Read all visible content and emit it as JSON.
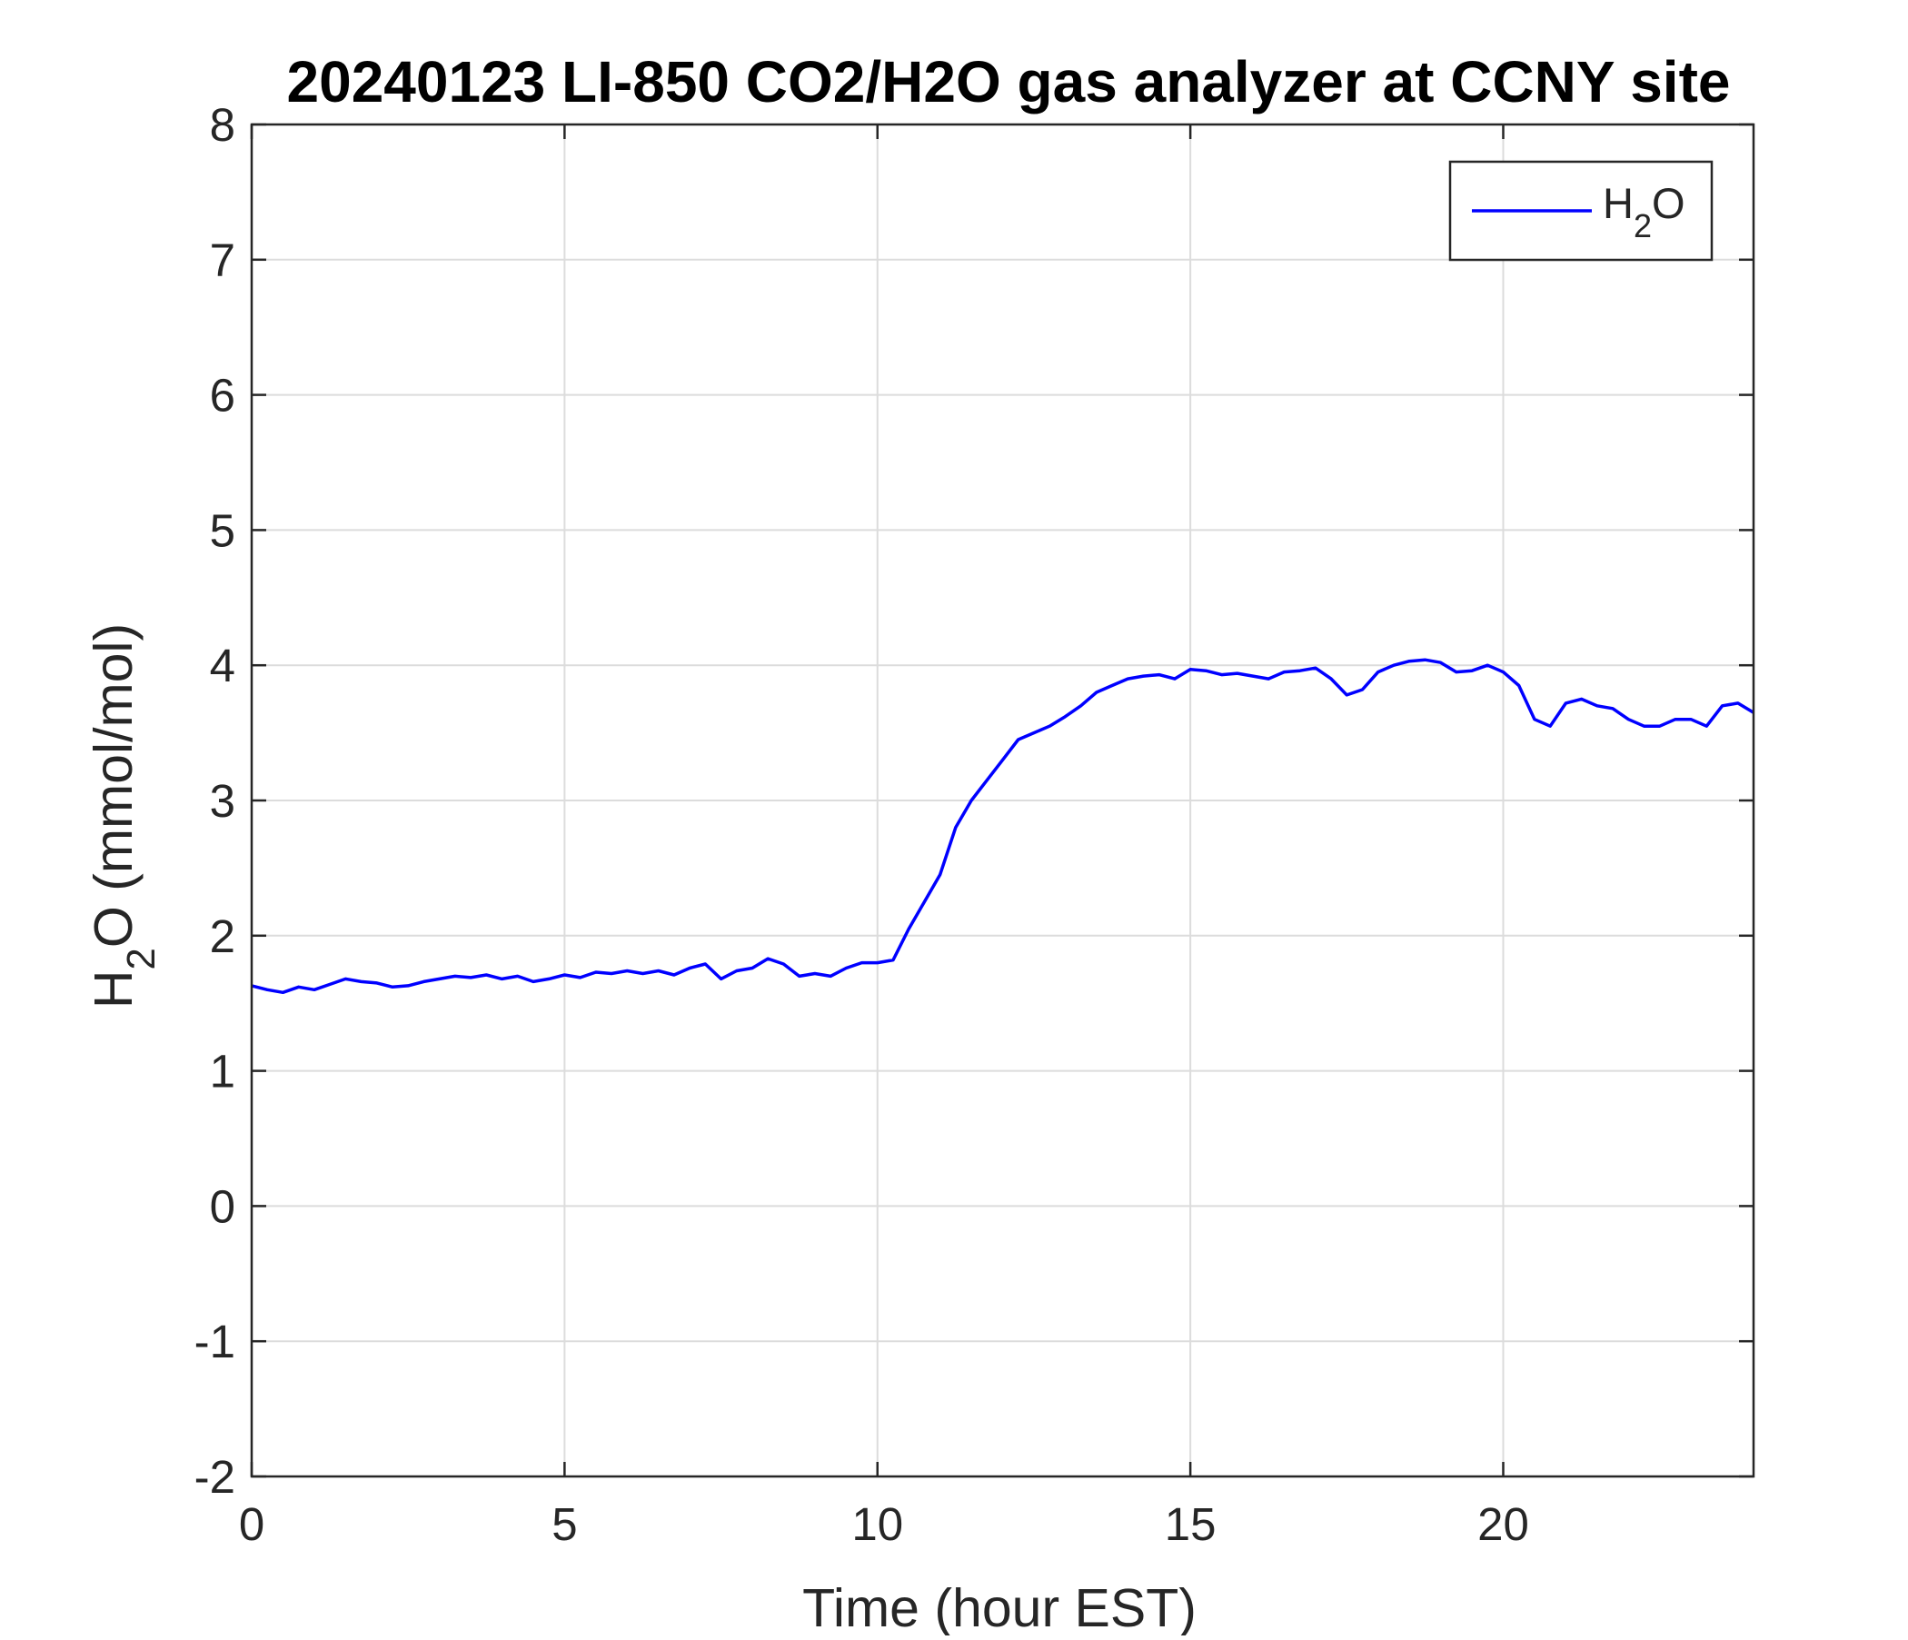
{
  "chart_data": {
    "type": "line",
    "title": "20240123 LI-850 CO2/H2O gas analyzer at CCNY site",
    "xlabel": "Time (hour EST)",
    "ylabel": {
      "base": "H",
      "sub": "2",
      "rest": "O (mmol/mol)"
    },
    "xlim": [
      0,
      24
    ],
    "ylim": [
      -2,
      8
    ],
    "xticks": [
      0,
      5,
      10,
      15,
      20
    ],
    "yticks": [
      -2,
      -1,
      0,
      1,
      2,
      3,
      4,
      5,
      6,
      7,
      8
    ],
    "grid": true,
    "legend_position": "top-right",
    "series": [
      {
        "name": {
          "base": "H",
          "sub": "2",
          "rest": "O"
        },
        "color": "#0000ff",
        "x": [
          0,
          0.25,
          0.5,
          0.75,
          1.0,
          1.25,
          1.5,
          1.75,
          2.0,
          2.25,
          2.5,
          2.75,
          3.0,
          3.25,
          3.5,
          3.75,
          4.0,
          4.25,
          4.5,
          4.75,
          5.0,
          5.25,
          5.5,
          5.75,
          6.0,
          6.25,
          6.5,
          6.75,
          7.0,
          7.25,
          7.5,
          7.75,
          8.0,
          8.25,
          8.5,
          8.75,
          9.0,
          9.25,
          9.5,
          9.75,
          10.0,
          10.25,
          10.5,
          10.75,
          11.0,
          11.25,
          11.5,
          11.75,
          12.0,
          12.25,
          12.5,
          12.75,
          13.0,
          13.25,
          13.5,
          13.75,
          14.0,
          14.25,
          14.5,
          14.75,
          15.0,
          15.25,
          15.5,
          15.75,
          16.0,
          16.25,
          16.5,
          16.75,
          17.0,
          17.25,
          17.5,
          17.75,
          18.0,
          18.25,
          18.5,
          18.75,
          19.0,
          19.25,
          19.5,
          19.75,
          20.0,
          20.25,
          20.5,
          20.75,
          21.0,
          21.25,
          21.5,
          21.75,
          22.0,
          22.25,
          22.5,
          22.75,
          23.0,
          23.25,
          23.5,
          23.75,
          24.0
        ],
        "y": [
          1.63,
          1.6,
          1.58,
          1.62,
          1.6,
          1.64,
          1.68,
          1.66,
          1.65,
          1.62,
          1.63,
          1.66,
          1.68,
          1.7,
          1.69,
          1.71,
          1.68,
          1.7,
          1.66,
          1.68,
          1.71,
          1.69,
          1.73,
          1.72,
          1.74,
          1.72,
          1.74,
          1.71,
          1.76,
          1.79,
          1.68,
          1.74,
          1.76,
          1.83,
          1.79,
          1.7,
          1.72,
          1.7,
          1.76,
          1.8,
          1.8,
          1.82,
          2.05,
          2.25,
          2.45,
          2.8,
          3.0,
          3.15,
          3.3,
          3.45,
          3.5,
          3.55,
          3.62,
          3.7,
          3.8,
          3.85,
          3.9,
          3.92,
          3.93,
          3.9,
          3.97,
          3.96,
          3.93,
          3.94,
          3.92,
          3.9,
          3.95,
          3.96,
          3.98,
          3.9,
          3.78,
          3.82,
          3.95,
          4.0,
          4.03,
          4.04,
          4.02,
          3.95,
          3.96,
          4.0,
          3.95,
          3.85,
          3.6,
          3.55,
          3.72,
          3.75,
          3.7,
          3.68,
          3.6,
          3.55,
          3.55,
          3.6,
          3.6,
          3.55,
          3.7,
          3.72,
          3.65
        ]
      }
    ]
  }
}
